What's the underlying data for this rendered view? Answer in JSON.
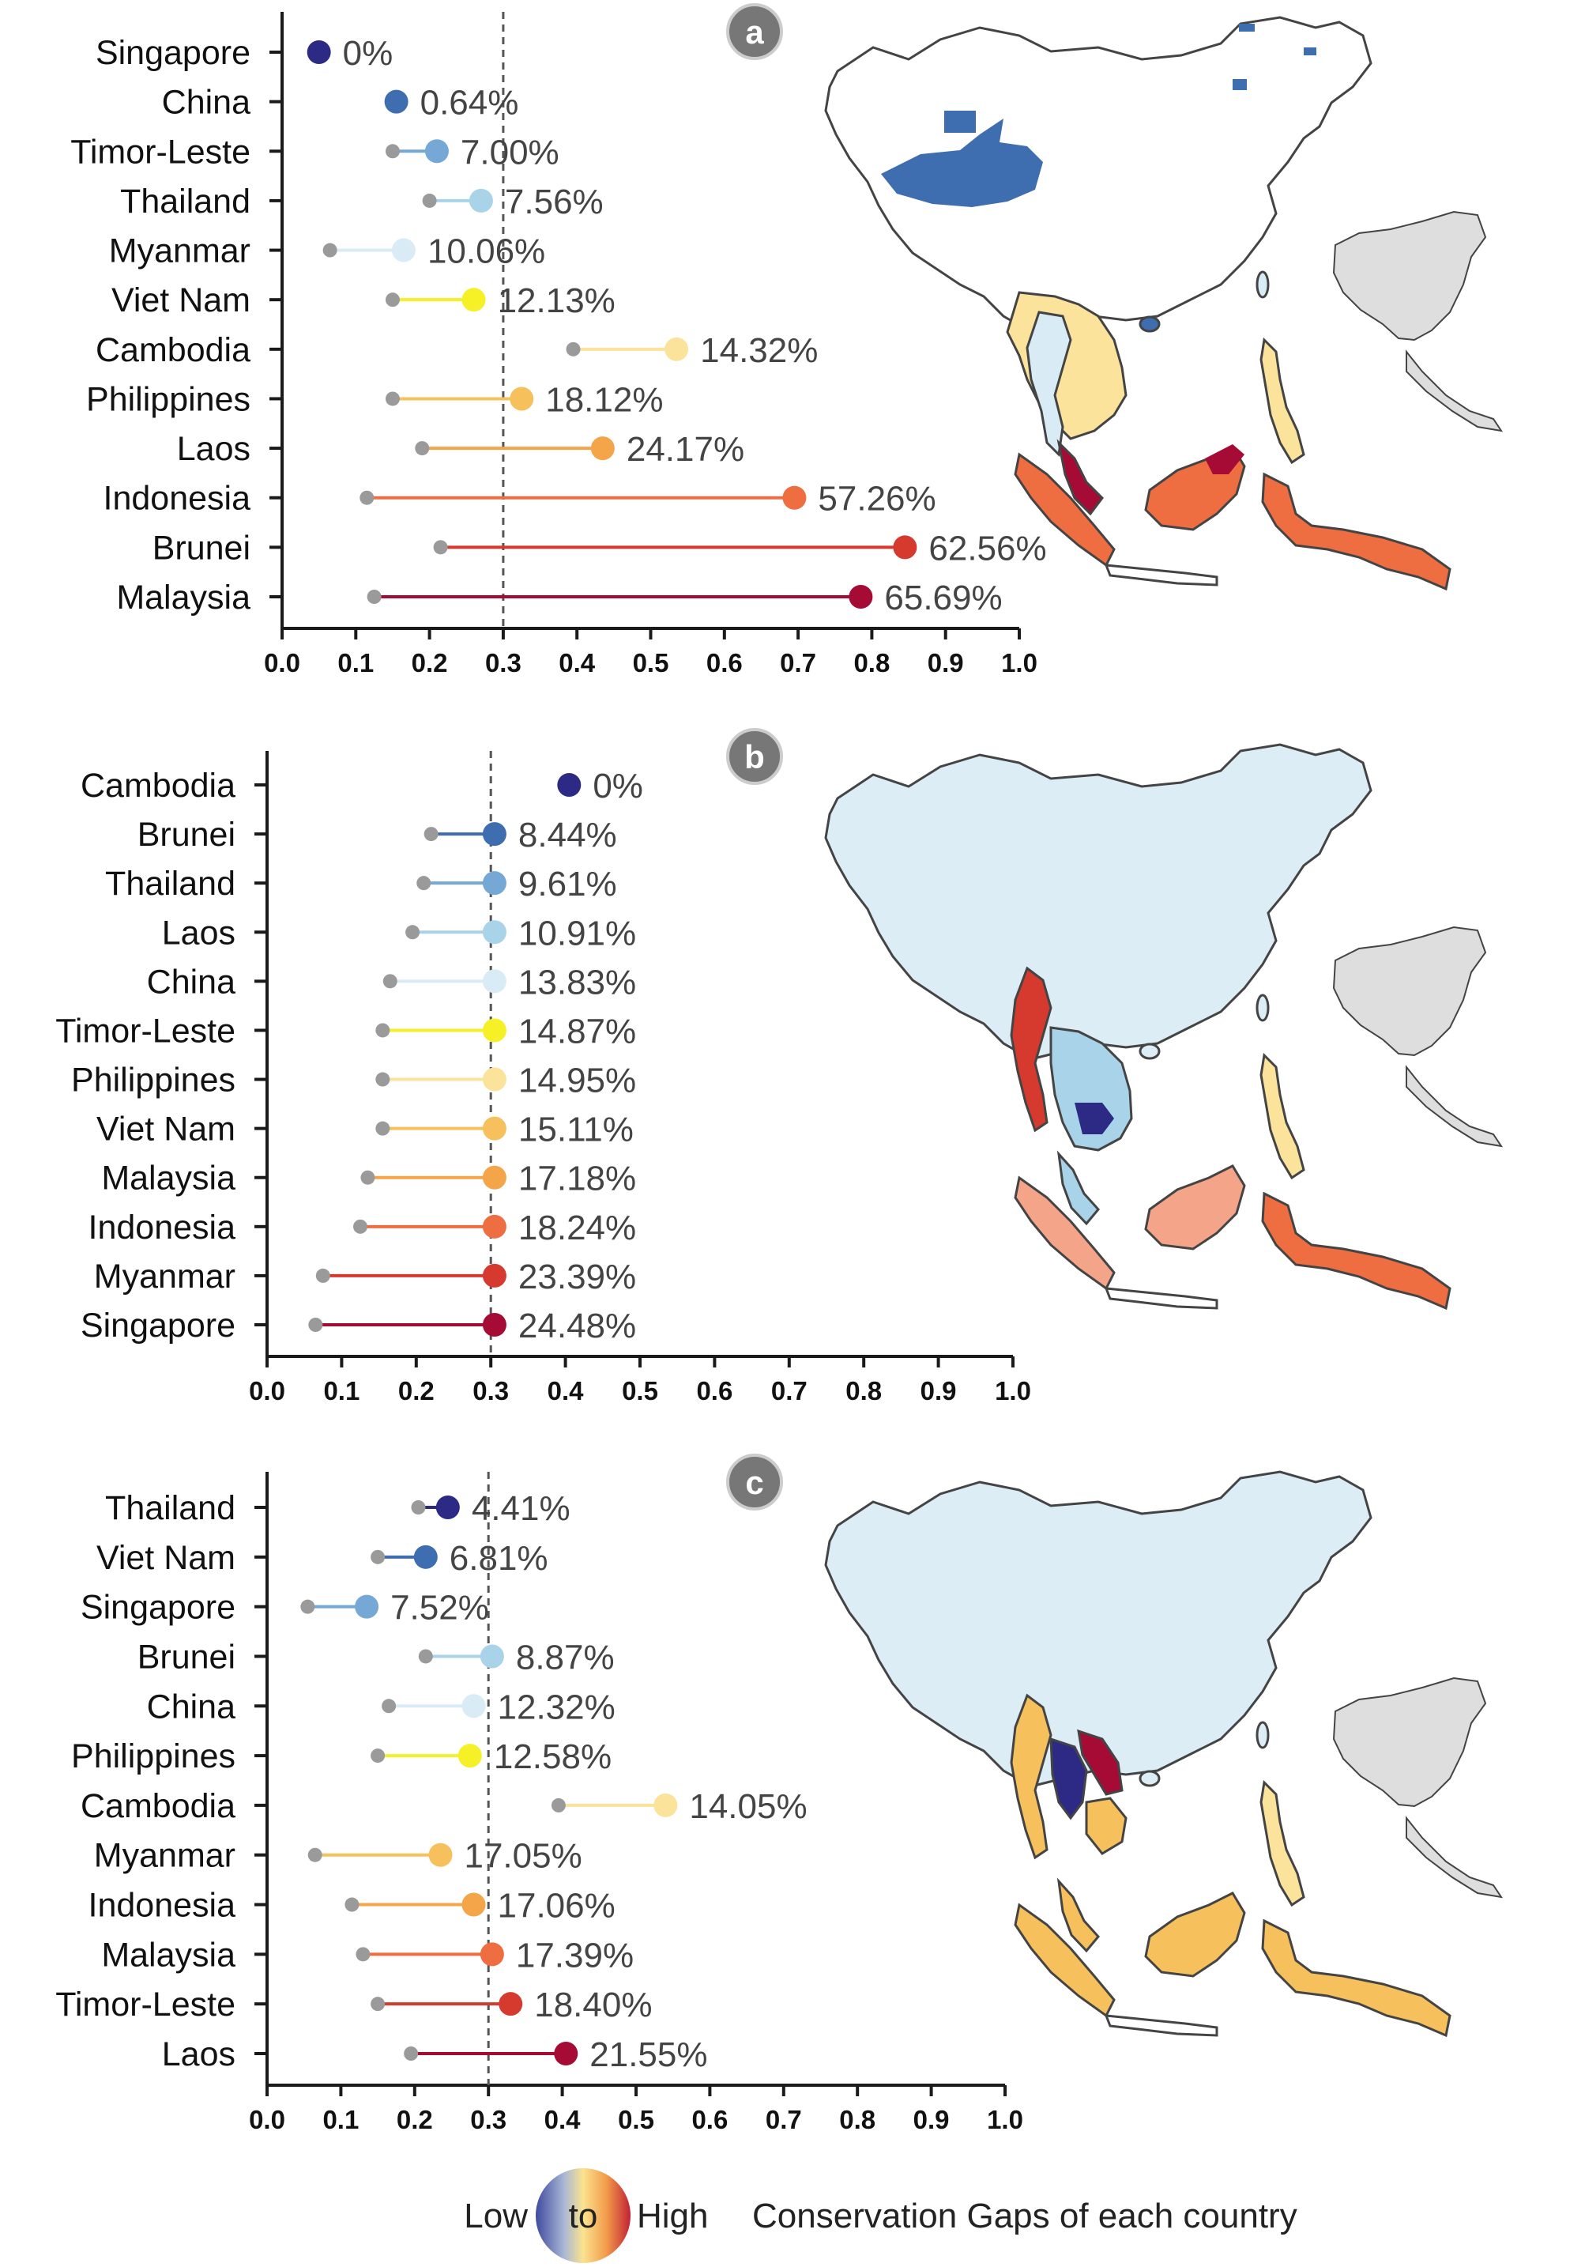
{
  "colors": {
    "palette": [
      "#2c2a84",
      "#3e6db0",
      "#75a8d4",
      "#a8d3e8",
      "#d9ecf5",
      "#f6f126",
      "#fbe39c",
      "#f6c15d",
      "#f4a54a",
      "#ee6d41",
      "#d63a2e",
      "#a50b35"
    ],
    "start_dot": "#9a9a9a",
    "axis": "#1a1a1a",
    "value_text": "#444444",
    "reference_line": "#555555",
    "map_land_fill": "#dcedf5",
    "map_outline": "#444444",
    "inset_fill": "#dedede"
  },
  "chart_data": [
    {
      "type": "dumbbell",
      "panel_label": "a",
      "categories": [
        "Singapore",
        "China",
        "Timor-Leste",
        "Thailand",
        "Myanmar",
        "Viet Nam",
        "Cambodia",
        "Philippines",
        "Laos",
        "Indonesia",
        "Brunei",
        "Malaysia"
      ],
      "start": [
        null,
        null,
        0.15,
        0.2,
        0.065,
        0.15,
        0.395,
        0.15,
        0.19,
        0.115,
        0.215,
        0.125
      ],
      "end": [
        0.05,
        0.155,
        0.21,
        0.27,
        0.165,
        0.26,
        0.535,
        0.325,
        0.435,
        0.695,
        0.845,
        0.785
      ],
      "labels": [
        "0%",
        "0.64%",
        "7.00%",
        "7.56%",
        "10.06%",
        "12.13%",
        "14.32%",
        "18.12%",
        "24.17%",
        "57.26%",
        "62.56%",
        "65.69%"
      ],
      "xlim": [
        0.0,
        1.0
      ],
      "xticks": [
        "0.0",
        "0.1",
        "0.2",
        "0.3",
        "0.4",
        "0.5",
        "0.6",
        "0.7",
        "0.8",
        "0.9",
        "1.0"
      ],
      "reference_line": 0.3,
      "grid": false
    },
    {
      "type": "dumbbell",
      "panel_label": "b",
      "categories": [
        "Cambodia",
        "Brunei",
        "Thailand",
        "Laos",
        "China",
        "Timor-Leste",
        "Philippines",
        "Viet Nam",
        "Malaysia",
        "Indonesia",
        "Myanmar",
        "Singapore"
      ],
      "start": [
        null,
        0.22,
        0.21,
        0.195,
        0.165,
        0.155,
        0.155,
        0.155,
        0.135,
        0.125,
        0.075,
        0.065
      ],
      "end": [
        0.405,
        0.305,
        0.305,
        0.305,
        0.305,
        0.305,
        0.305,
        0.305,
        0.305,
        0.305,
        0.305,
        0.305
      ],
      "labels": [
        "0%",
        "8.44%",
        "9.61%",
        "10.91%",
        "13.83%",
        "14.87%",
        "14.95%",
        "15.11%",
        "17.18%",
        "18.24%",
        "23.39%",
        "24.48%"
      ],
      "xlim": [
        0.0,
        1.0
      ],
      "xticks": [
        "0.0",
        "0.1",
        "0.2",
        "0.3",
        "0.4",
        "0.5",
        "0.6",
        "0.7",
        "0.8",
        "0.9",
        "1.0"
      ],
      "reference_line": 0.3,
      "grid": false
    },
    {
      "type": "dumbbell",
      "panel_label": "c",
      "categories": [
        "Thailand",
        "Viet Nam",
        "Singapore",
        "Brunei",
        "China",
        "Philippines",
        "Cambodia",
        "Myanmar",
        "Indonesia",
        "Malaysia",
        "Timor-Leste",
        "Laos"
      ],
      "start": [
        0.205,
        0.15,
        0.055,
        0.215,
        0.165,
        0.15,
        0.395,
        0.065,
        0.115,
        0.13,
        0.15,
        0.195
      ],
      "end": [
        0.245,
        0.215,
        0.135,
        0.305,
        0.28,
        0.275,
        0.54,
        0.235,
        0.28,
        0.305,
        0.33,
        0.405
      ],
      "labels": [
        "4.41%",
        "6.81%",
        "7.52%",
        "8.87%",
        "12.32%",
        "12.58%",
        "14.05%",
        "17.05%",
        "17.06%",
        "17.39%",
        "18.40%",
        "21.55%"
      ],
      "xlim": [
        0.0,
        1.0
      ],
      "xticks": [
        "0.0",
        "0.1",
        "0.2",
        "0.3",
        "0.4",
        "0.5",
        "0.6",
        "0.7",
        "0.8",
        "0.9",
        "1.0"
      ],
      "reference_line": 0.3,
      "grid": false
    }
  ],
  "legend": {
    "low": "Low",
    "to": "to",
    "high": "High",
    "caption": "Conservation Gaps of each country"
  }
}
